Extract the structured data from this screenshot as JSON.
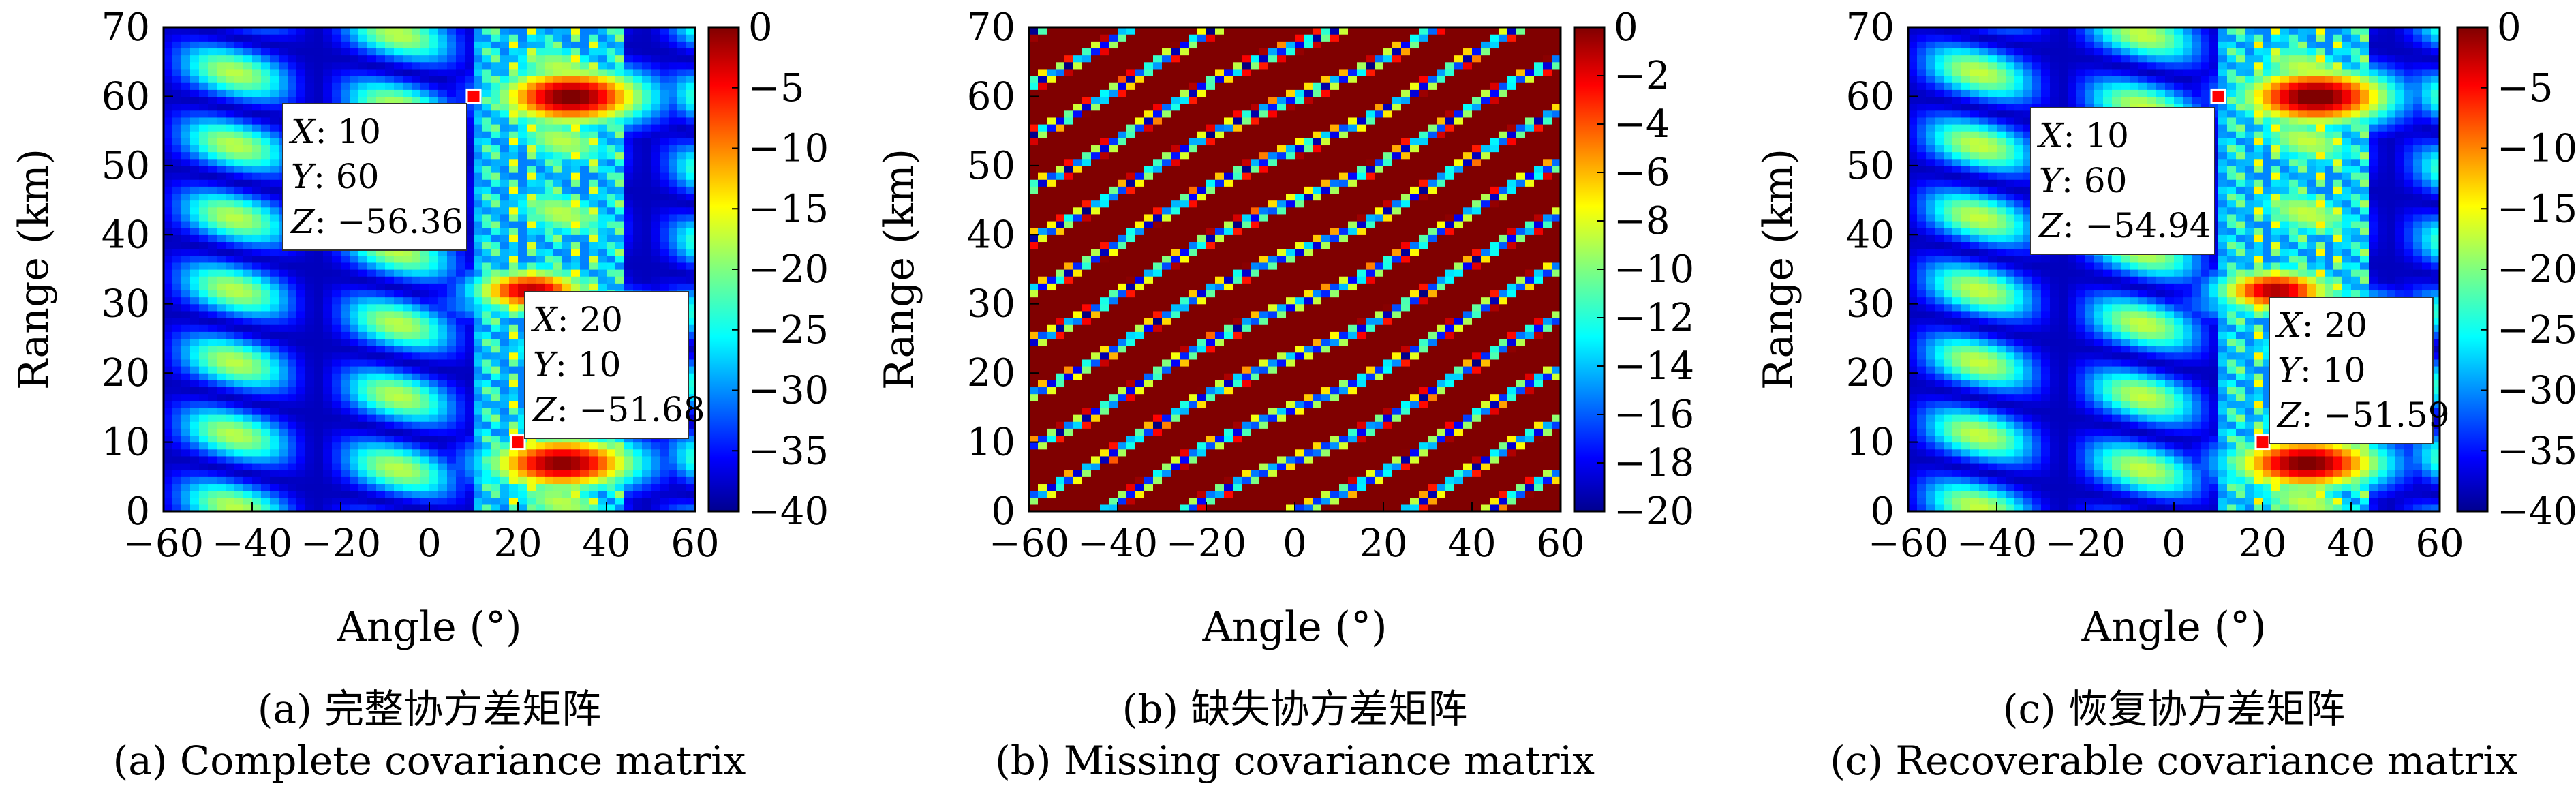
{
  "chart_data": [
    {
      "id": "a",
      "type": "heatmap",
      "xlabel": "Angle (°)",
      "ylabel": "Range (km)",
      "xlim": [
        -60,
        60
      ],
      "ylim": [
        0,
        70
      ],
      "x_ticks": [
        "−60",
        "−40",
        "−20",
        "0",
        "20",
        "40",
        "60"
      ],
      "y_ticks": [
        "0",
        "10",
        "20",
        "30",
        "40",
        "50",
        "60",
        "70"
      ],
      "colorbar": {
        "range": [
          -40,
          0
        ],
        "ticks": [
          "0",
          "−5",
          "−10",
          "−15",
          "−20",
          "−25",
          "−30",
          "−35",
          "−40"
        ]
      },
      "colormap": "jet",
      "targets": [
        {
          "x": 20,
          "y": 10
        },
        {
          "x": 10,
          "y": 60
        }
      ],
      "datatips": [
        {
          "X": "10",
          "Y": "60",
          "Z": "−56.36"
        },
        {
          "X": "20",
          "Y": "10",
          "Z": "−51.68"
        }
      ],
      "caption_cn": "(a) 完整协方差矩阵",
      "caption_en": "(a) Complete covariance matrix"
    },
    {
      "id": "b",
      "type": "heatmap",
      "xlabel": "Angle (°)",
      "ylabel": "Range (km)",
      "xlim": [
        -60,
        60
      ],
      "ylim": [
        0,
        70
      ],
      "x_ticks": [
        "−60",
        "−40",
        "−20",
        "0",
        "20",
        "40",
        "60"
      ],
      "y_ticks": [
        "0",
        "10",
        "20",
        "30",
        "40",
        "50",
        "60",
        "70"
      ],
      "colorbar": {
        "range": [
          -20,
          0
        ],
        "ticks": [
          "0",
          "−2",
          "−4",
          "−6",
          "−8",
          "−10",
          "−12",
          "−14",
          "−16",
          "−18",
          "−20"
        ]
      },
      "colormap": "jet",
      "datatips": [],
      "caption_cn": "(b) 缺失协方差矩阵",
      "caption_en": "(b) Missing covariance matrix"
    },
    {
      "id": "c",
      "type": "heatmap",
      "xlabel": "Angle (°)",
      "ylabel": "Range (km)",
      "xlim": [
        -60,
        60
      ],
      "ylim": [
        0,
        70
      ],
      "x_ticks": [
        "−60",
        "−40",
        "−20",
        "0",
        "20",
        "40",
        "60"
      ],
      "y_ticks": [
        "0",
        "10",
        "20",
        "30",
        "40",
        "50",
        "60",
        "70"
      ],
      "colorbar": {
        "range": [
          -40,
          0
        ],
        "ticks": [
          "0",
          "−5",
          "−10",
          "−15",
          "−20",
          "−25",
          "−30",
          "−35",
          "−40"
        ]
      },
      "colormap": "jet",
      "targets": [
        {
          "x": 20,
          "y": 10
        },
        {
          "x": 10,
          "y": 60
        }
      ],
      "datatips": [
        {
          "X": "10",
          "Y": "60",
          "Z": "−54.94"
        },
        {
          "X": "20",
          "Y": "10",
          "Z": "−51.59"
        }
      ],
      "caption_cn": "(c) 恢复协方差矩阵",
      "caption_en": "(c) Recoverable covariance matrix"
    }
  ],
  "colors": {
    "jet_low": "#00008f",
    "jet_high": "#800000",
    "marker": "#ff0000"
  }
}
